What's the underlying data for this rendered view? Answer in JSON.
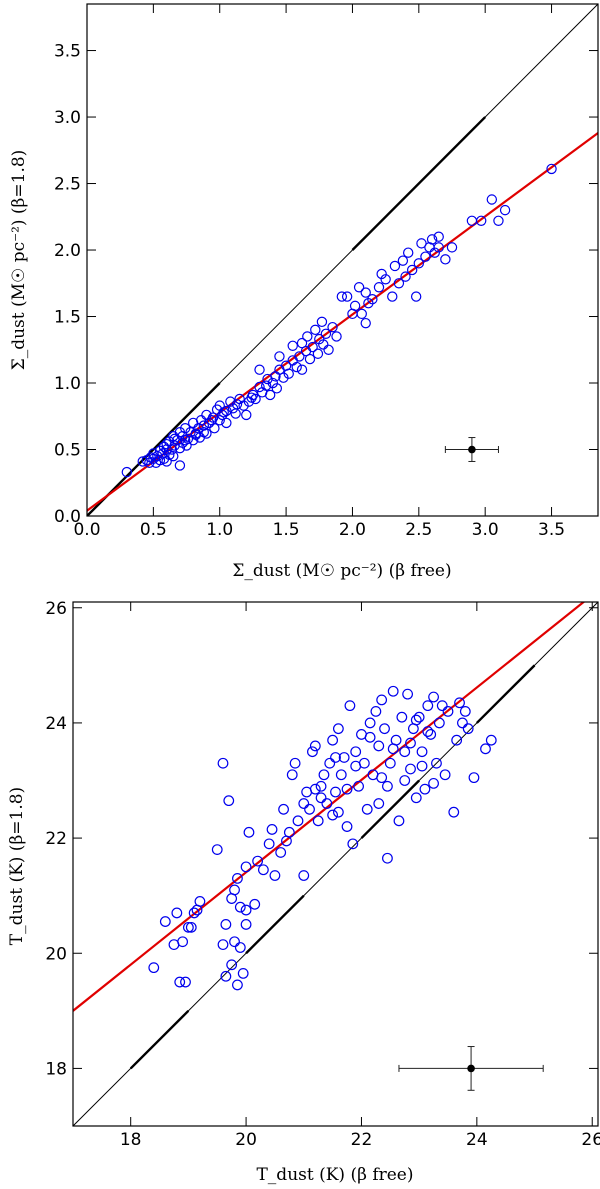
{
  "chart_data": [
    {
      "type": "scatter",
      "title": "",
      "xlabel": "Σ_dust (M☉ pc⁻²) (β free)",
      "ylabel": "Σ_dust (M☉ pc⁻²) (β=1.8)",
      "xlim": [
        0,
        3.85
      ],
      "ylim": [
        0,
        3.85
      ],
      "xticks": [
        0.0,
        0.5,
        1.0,
        1.5,
        2.0,
        2.5,
        3.0,
        3.5
      ],
      "xtick_labels": [
        "0.0",
        "0.5",
        "1.0",
        "1.5",
        "2.0",
        "2.5",
        "3.0",
        "3.5"
      ],
      "yticks": [
        0.0,
        0.5,
        1.0,
        1.5,
        2.0,
        2.5,
        3.0,
        3.5
      ],
      "ytick_labels": [
        "0.0",
        "0.5",
        "1.0",
        "1.5",
        "2.0",
        "2.5",
        "3.0",
        "3.5"
      ],
      "one_to_one": {
        "x": [
          0,
          3.85
        ],
        "y": [
          0,
          3.85
        ],
        "dash_x": [
          [
            0,
            1
          ],
          [
            2,
            3
          ]
        ]
      },
      "fit_line": {
        "x": [
          0,
          3.85
        ],
        "y": [
          0.04,
          2.88
        ]
      },
      "error_bar": {
        "x": 2.9,
        "y": 0.5,
        "xerr": 0.2,
        "yerr": 0.09
      },
      "points": [
        [
          0.3,
          0.33
        ],
        [
          0.42,
          0.41
        ],
        [
          0.45,
          0.42
        ],
        [
          0.47,
          0.4
        ],
        [
          0.48,
          0.44
        ],
        [
          0.5,
          0.43
        ],
        [
          0.5,
          0.47
        ],
        [
          0.52,
          0.4
        ],
        [
          0.53,
          0.45
        ],
        [
          0.55,
          0.42
        ],
        [
          0.55,
          0.49
        ],
        [
          0.57,
          0.47
        ],
        [
          0.58,
          0.52
        ],
        [
          0.58,
          0.43
        ],
        [
          0.6,
          0.41
        ],
        [
          0.6,
          0.5
        ],
        [
          0.62,
          0.46
        ],
        [
          0.62,
          0.56
        ],
        [
          0.64,
          0.5
        ],
        [
          0.65,
          0.6
        ],
        [
          0.65,
          0.45
        ],
        [
          0.66,
          0.53
        ],
        [
          0.68,
          0.57
        ],
        [
          0.7,
          0.38
        ],
        [
          0.7,
          0.51
        ],
        [
          0.7,
          0.63
        ],
        [
          0.72,
          0.55
        ],
        [
          0.72,
          0.6
        ],
        [
          0.74,
          0.66
        ],
        [
          0.75,
          0.53
        ],
        [
          0.76,
          0.58
        ],
        [
          0.78,
          0.63
        ],
        [
          0.8,
          0.57
        ],
        [
          0.8,
          0.7
        ],
        [
          0.82,
          0.62
        ],
        [
          0.84,
          0.66
        ],
        [
          0.85,
          0.59
        ],
        [
          0.86,
          0.72
        ],
        [
          0.88,
          0.68
        ],
        [
          0.9,
          0.62
        ],
        [
          0.9,
          0.76
        ],
        [
          0.92,
          0.7
        ],
        [
          0.95,
          0.74
        ],
        [
          0.96,
          0.66
        ],
        [
          0.98,
          0.8
        ],
        [
          1.0,
          0.72
        ],
        [
          1.0,
          0.83
        ],
        [
          1.02,
          0.76
        ],
        [
          1.05,
          0.79
        ],
        [
          1.05,
          0.7
        ],
        [
          1.08,
          0.86
        ],
        [
          1.1,
          0.81
        ],
        [
          1.12,
          0.77
        ],
        [
          1.15,
          0.88
        ],
        [
          1.18,
          0.83
        ],
        [
          1.2,
          0.76
        ],
        [
          1.22,
          0.86
        ],
        [
          1.25,
          0.91
        ],
        [
          1.27,
          0.88
        ],
        [
          1.3,
          0.97
        ],
        [
          1.3,
          1.1
        ],
        [
          1.32,
          0.93
        ],
        [
          1.35,
          0.98
        ],
        [
          1.38,
          0.91
        ],
        [
          1.4,
          1.0
        ],
        [
          1.42,
          1.05
        ],
        [
          1.43,
          0.96
        ],
        [
          1.45,
          1.2
        ],
        [
          1.45,
          1.1
        ],
        [
          1.48,
          1.04
        ],
        [
          1.5,
          1.13
        ],
        [
          1.52,
          1.07
        ],
        [
          1.55,
          1.17
        ],
        [
          1.55,
          1.28
        ],
        [
          1.58,
          1.12
        ],
        [
          1.6,
          1.2
        ],
        [
          1.62,
          1.1
        ],
        [
          1.62,
          1.3
        ],
        [
          1.65,
          1.24
        ],
        [
          1.66,
          1.35
        ],
        [
          1.68,
          1.18
        ],
        [
          1.7,
          1.27
        ],
        [
          1.72,
          1.4
        ],
        [
          1.74,
          1.22
        ],
        [
          1.75,
          1.33
        ],
        [
          1.77,
          1.46
        ],
        [
          1.78,
          1.29
        ],
        [
          1.8,
          1.37
        ],
        [
          1.82,
          1.25
        ],
        [
          1.85,
          1.42
        ],
        [
          1.88,
          1.35
        ],
        [
          1.92,
          1.65
        ],
        [
          1.96,
          1.65
        ],
        [
          2.0,
          1.52
        ],
        [
          2.02,
          1.58
        ],
        [
          2.05,
          1.72
        ],
        [
          2.07,
          1.52
        ],
        [
          2.1,
          1.45
        ],
        [
          2.1,
          1.68
        ],
        [
          2.12,
          1.6
        ],
        [
          2.15,
          1.63
        ],
        [
          2.2,
          1.72
        ],
        [
          2.22,
          1.82
        ],
        [
          2.25,
          1.78
        ],
        [
          2.3,
          1.65
        ],
        [
          2.32,
          1.88
        ],
        [
          2.35,
          1.75
        ],
        [
          2.38,
          1.92
        ],
        [
          2.4,
          1.8
        ],
        [
          2.42,
          1.98
        ],
        [
          2.45,
          1.85
        ],
        [
          2.48,
          1.65
        ],
        [
          2.5,
          1.9
        ],
        [
          2.52,
          2.05
        ],
        [
          2.55,
          1.95
        ],
        [
          2.58,
          2.02
        ],
        [
          2.6,
          2.08
        ],
        [
          2.62,
          1.98
        ],
        [
          2.65,
          2.1
        ],
        [
          2.65,
          2.02
        ],
        [
          2.7,
          1.93
        ],
        [
          2.75,
          2.02
        ],
        [
          2.9,
          2.22
        ],
        [
          2.97,
          2.22
        ],
        [
          3.05,
          2.38
        ],
        [
          3.1,
          2.22
        ],
        [
          3.15,
          2.3
        ],
        [
          3.5,
          2.61
        ],
        [
          0.82,
          0.61
        ],
        [
          0.94,
          0.72
        ],
        [
          1.03,
          0.78
        ],
        [
          1.13,
          0.84
        ],
        [
          1.24,
          0.89
        ],
        [
          1.36,
          1.03
        ],
        [
          0.6,
          0.54
        ],
        [
          0.66,
          0.58
        ],
        [
          0.74,
          0.57
        ],
        [
          0.88,
          0.63
        ]
      ]
    },
    {
      "type": "scatter",
      "title": "",
      "xlabel": "T_dust (K) (β free)",
      "ylabel": "T_dust (K) (β=1.8)",
      "xlim": [
        17,
        26.1
      ],
      "ylim": [
        17,
        26.1
      ],
      "xticks": [
        18,
        20,
        22,
        24,
        26
      ],
      "xtick_labels": [
        "18",
        "20",
        "22",
        "24",
        "26"
      ],
      "yticks": [
        18,
        20,
        22,
        24,
        26
      ],
      "ytick_labels": [
        "18",
        "20",
        "22",
        "24",
        "26"
      ],
      "one_to_one": {
        "x": [
          17,
          26.1
        ],
        "y": [
          17,
          26.1
        ],
        "dash_x": [
          [
            18,
            19
          ],
          [
            20,
            21
          ],
          [
            22,
            23
          ],
          [
            24,
            25
          ]
        ]
      },
      "fit_line": {
        "x": [
          17,
          26.1
        ],
        "y": [
          19.0,
          26.3
        ]
      },
      "error_bar": {
        "x": 23.9,
        "y": 18.0,
        "xerr": 1.25,
        "yerr": 0.38
      },
      "points": [
        [
          18.4,
          19.75
        ],
        [
          18.6,
          20.55
        ],
        [
          18.75,
          20.15
        ],
        [
          18.8,
          20.7
        ],
        [
          18.85,
          19.5
        ],
        [
          18.9,
          20.2
        ],
        [
          18.95,
          19.5
        ],
        [
          19.0,
          20.45
        ],
        [
          19.05,
          20.45
        ],
        [
          19.1,
          20.7
        ],
        [
          19.15,
          20.75
        ],
        [
          19.2,
          20.9
        ],
        [
          19.5,
          21.8
        ],
        [
          19.6,
          23.3
        ],
        [
          19.6,
          20.15
        ],
        [
          19.65,
          20.5
        ],
        [
          19.65,
          19.6
        ],
        [
          19.7,
          22.65
        ],
        [
          19.75,
          19.8
        ],
        [
          19.75,
          20.95
        ],
        [
          19.8,
          21.1
        ],
        [
          19.8,
          20.2
        ],
        [
          19.85,
          19.45
        ],
        [
          19.85,
          21.3
        ],
        [
          19.9,
          20.8
        ],
        [
          19.9,
          20.1
        ],
        [
          19.95,
          19.65
        ],
        [
          20.0,
          20.75
        ],
        [
          20.0,
          20.5
        ],
        [
          20.0,
          21.5
        ],
        [
          20.05,
          22.1
        ],
        [
          20.15,
          20.85
        ],
        [
          20.2,
          21.6
        ],
        [
          20.3,
          21.45
        ],
        [
          20.4,
          21.9
        ],
        [
          20.45,
          22.15
        ],
        [
          20.5,
          21.35
        ],
        [
          20.6,
          21.75
        ],
        [
          20.65,
          22.5
        ],
        [
          20.7,
          21.95
        ],
        [
          20.75,
          22.1
        ],
        [
          20.8,
          23.1
        ],
        [
          20.85,
          23.3
        ],
        [
          20.9,
          22.3
        ],
        [
          21.0,
          22.6
        ],
        [
          21.0,
          21.35
        ],
        [
          21.05,
          22.8
        ],
        [
          21.1,
          22.5
        ],
        [
          21.15,
          23.5
        ],
        [
          21.2,
          23.6
        ],
        [
          21.25,
          22.3
        ],
        [
          21.3,
          22.9
        ],
        [
          21.3,
          22.7
        ],
        [
          21.35,
          23.1
        ],
        [
          21.4,
          22.6
        ],
        [
          21.45,
          23.3
        ],
        [
          21.5,
          23.7
        ],
        [
          21.5,
          22.4
        ],
        [
          21.55,
          22.8
        ],
        [
          21.6,
          23.9
        ],
        [
          21.65,
          23.1
        ],
        [
          21.7,
          23.4
        ],
        [
          21.75,
          22.2
        ],
        [
          21.8,
          24.3
        ],
        [
          21.85,
          21.9
        ],
        [
          21.9,
          23.5
        ],
        [
          21.95,
          22.9
        ],
        [
          22.0,
          23.8
        ],
        [
          22.05,
          23.3
        ],
        [
          22.1,
          22.5
        ],
        [
          22.15,
          24.0
        ],
        [
          22.2,
          23.1
        ],
        [
          22.25,
          24.2
        ],
        [
          22.3,
          23.6
        ],
        [
          22.3,
          22.6
        ],
        [
          22.35,
          24.4
        ],
        [
          22.4,
          23.9
        ],
        [
          22.45,
          21.65
        ],
        [
          22.5,
          23.3
        ],
        [
          22.55,
          24.55
        ],
        [
          22.6,
          23.7
        ],
        [
          22.65,
          22.3
        ],
        [
          22.7,
          24.1
        ],
        [
          22.75,
          23.5
        ],
        [
          22.8,
          24.5
        ],
        [
          22.85,
          23.2
        ],
        [
          22.9,
          23.9
        ],
        [
          22.95,
          22.7
        ],
        [
          23.0,
          24.1
        ],
        [
          23.05,
          23.5
        ],
        [
          23.1,
          22.85
        ],
        [
          23.15,
          24.3
        ],
        [
          23.2,
          23.8
        ],
        [
          23.25,
          24.45
        ],
        [
          23.3,
          23.3
        ],
        [
          23.35,
          24.0
        ],
        [
          23.4,
          24.3
        ],
        [
          23.45,
          23.1
        ],
        [
          23.5,
          24.2
        ],
        [
          23.6,
          22.45
        ],
        [
          23.65,
          23.7
        ],
        [
          23.7,
          24.35
        ],
        [
          23.75,
          24.0
        ],
        [
          23.8,
          24.2
        ],
        [
          23.85,
          23.9
        ],
        [
          23.95,
          23.05
        ],
        [
          24.15,
          23.55
        ],
        [
          24.25,
          23.7
        ],
        [
          21.55,
          23.4
        ],
        [
          21.75,
          22.85
        ],
        [
          21.9,
          23.25
        ],
        [
          22.15,
          23.75
        ],
        [
          22.35,
          23.05
        ],
        [
          22.55,
          23.55
        ],
        [
          22.75,
          23.0
        ],
        [
          22.95,
          24.05
        ],
        [
          23.05,
          23.25
        ],
        [
          23.25,
          22.95
        ],
        [
          21.2,
          22.85
        ],
        [
          21.6,
          22.45
        ],
        [
          22.45,
          22.9
        ],
        [
          22.85,
          23.65
        ],
        [
          23.15,
          23.85
        ]
      ]
    }
  ]
}
